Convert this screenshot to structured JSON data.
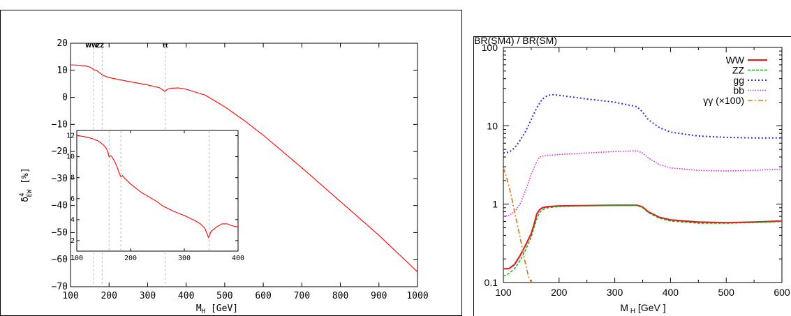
{
  "chart_data": [
    {
      "type": "line",
      "title": "",
      "xlabel": "M_H [GeV]",
      "ylabel": "δ^4_EW [%]",
      "xlim": [
        100,
        1000
      ],
      "ylim": [
        -70,
        20
      ],
      "xticks": [
        100,
        200,
        300,
        400,
        500,
        600,
        700,
        800,
        900,
        1000
      ],
      "yticks": [
        20,
        10,
        0,
        -10,
        -20,
        -30,
        -40,
        -50,
        -60,
        -70
      ],
      "threshold_labels": [
        "WW",
        "ZZ",
        "tt"
      ],
      "thresholds": [
        160,
        182,
        346
      ],
      "series": [
        {
          "color": "#ff0000",
          "x": [
            100,
            120,
            140,
            150,
            155,
            160,
            165,
            170,
            180,
            182,
            185,
            200,
            250,
            300,
            330,
            345,
            350,
            360,
            380,
            400,
            450,
            500,
            550,
            600,
            700,
            800,
            900,
            1000
          ],
          "y": [
            12,
            11.9,
            11.6,
            11.2,
            10.9,
            10.2,
            10.1,
            9.7,
            8.6,
            8.2,
            8.1,
            7.3,
            5.9,
            4.6,
            3.6,
            2.2,
            2.9,
            3.4,
            3.5,
            3.0,
            0.8,
            -3.5,
            -8.5,
            -14,
            -26,
            -38.5,
            -51,
            -64.5
          ]
        }
      ],
      "inset": {
        "xlim": [
          100,
          400
        ],
        "ylim": [
          1,
          12.5
        ],
        "xticks": [
          100,
          200,
          300,
          400
        ],
        "yticks": [
          12,
          10,
          8,
          6,
          4,
          2
        ],
        "thresholds": [
          160,
          182,
          346
        ],
        "x": [
          100,
          110,
          120,
          130,
          140,
          145,
          150,
          155,
          158,
          160,
          163,
          165,
          170,
          175,
          180,
          182,
          185,
          190,
          200,
          220,
          240,
          250,
          260,
          280,
          300,
          320,
          330,
          338,
          342,
          345,
          347,
          350,
          355,
          360,
          370,
          380,
          390,
          400
        ],
        "y": [
          12,
          11.95,
          11.85,
          11.7,
          11.5,
          11.3,
          11.1,
          10.8,
          10.4,
          10.0,
          10.1,
          10.0,
          9.6,
          9.0,
          8.3,
          8.1,
          8.2,
          7.9,
          7.4,
          6.6,
          6.0,
          5.7,
          5.3,
          4.8,
          4.4,
          3.9,
          3.6,
          3.2,
          2.7,
          2.3,
          2.5,
          2.9,
          3.1,
          3.3,
          3.6,
          3.6,
          3.4,
          3.3
        ]
      }
    },
    {
      "type": "line",
      "title": "BR(SM4) / BR(SM)",
      "xlabel": "M H [GeV ]",
      "ylabel": "",
      "yscale": "log",
      "xlim": [
        100,
        600
      ],
      "ylim": [
        0.1,
        100
      ],
      "xticks": [
        100,
        200,
        300,
        400,
        500,
        600
      ],
      "ytick_labels": [
        "100",
        "10",
        "1",
        "0.1"
      ],
      "legend": "top-right",
      "series": [
        {
          "name": "WW",
          "color": "#e02020",
          "x": [
            100,
            110,
            120,
            130,
            140,
            150,
            155,
            160,
            165,
            170,
            180,
            200,
            250,
            300,
            340,
            350,
            360,
            380,
            400,
            450,
            500,
            550,
            600
          ],
          "y": [
            0.15,
            0.15,
            0.17,
            0.22,
            0.3,
            0.42,
            0.55,
            0.75,
            0.85,
            0.9,
            0.93,
            0.95,
            0.96,
            0.97,
            0.97,
            0.92,
            0.8,
            0.68,
            0.63,
            0.59,
            0.58,
            0.59,
            0.61
          ]
        },
        {
          "name": "ZZ",
          "color": "#10b010",
          "x": [
            100,
            110,
            120,
            130,
            140,
            150,
            155,
            160,
            165,
            170,
            180,
            200,
            250,
            300,
            340,
            350,
            360,
            380,
            400,
            450,
            500,
            550,
            600
          ],
          "y": [
            0.12,
            0.13,
            0.15,
            0.19,
            0.26,
            0.38,
            0.5,
            0.65,
            0.78,
            0.85,
            0.9,
            0.93,
            0.95,
            0.96,
            0.96,
            0.9,
            0.78,
            0.66,
            0.61,
            0.57,
            0.57,
            0.58,
            0.6
          ]
        },
        {
          "name": "gg",
          "color": "#2030e0",
          "x": [
            100,
            110,
            120,
            130,
            140,
            150,
            160,
            170,
            180,
            190,
            200,
            250,
            300,
            340,
            350,
            360,
            380,
            400,
            450,
            500,
            550,
            600
          ],
          "y": [
            4.5,
            4.6,
            5.2,
            6.5,
            8.5,
            12,
            17,
            22,
            24.5,
            25,
            24.5,
            22,
            20,
            17.5,
            15,
            12,
            9.5,
            8.3,
            7.4,
            7.1,
            7.0,
            7.0
          ]
        },
        {
          "name": "bb",
          "color": "#e020e0",
          "x": [
            100,
            110,
            120,
            130,
            140,
            150,
            160,
            165,
            170,
            180,
            200,
            250,
            300,
            340,
            350,
            360,
            380,
            400,
            450,
            500,
            550,
            600
          ],
          "y": [
            0.7,
            0.72,
            0.8,
            1.0,
            1.5,
            2.4,
            3.5,
            4.0,
            4.1,
            4.2,
            4.3,
            4.5,
            4.7,
            4.8,
            4.5,
            3.9,
            3.2,
            2.9,
            2.7,
            2.65,
            2.7,
            2.8
          ]
        },
        {
          "name": "γγ (×100)",
          "color": "#e07010",
          "x": [
            100,
            105,
            110,
            115,
            120,
            125,
            130,
            135,
            140,
            145,
            150
          ],
          "y": [
            2.9,
            2.3,
            1.7,
            1.2,
            0.8,
            0.55,
            0.38,
            0.25,
            0.17,
            0.12,
            0.1
          ]
        }
      ]
    }
  ]
}
